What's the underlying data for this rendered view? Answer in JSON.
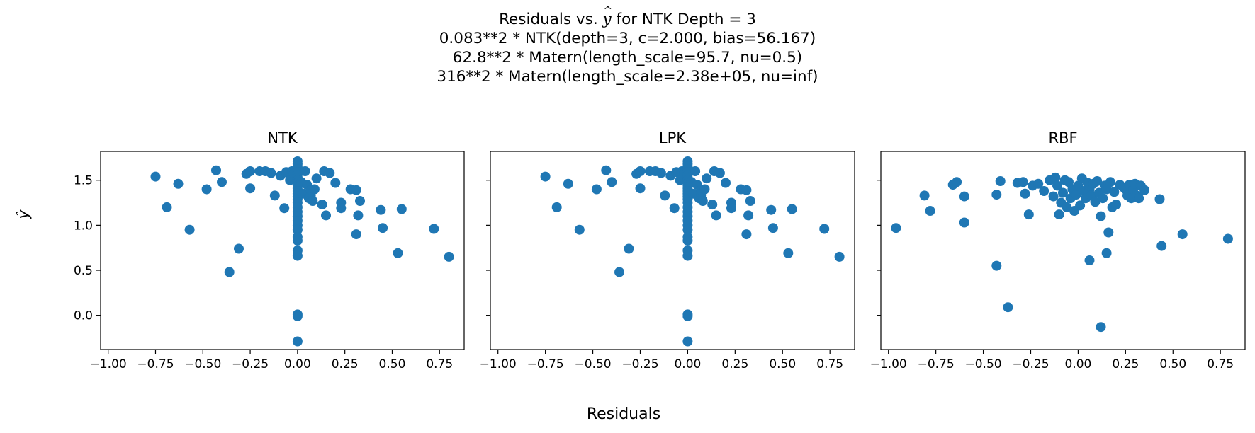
{
  "figure": {
    "title": {
      "line1_prefix": "Residuals vs. ",
      "line1_symbol": "y",
      "line1_suffix": " for NTK Depth = 3",
      "line2": "0.083**2 * NTK(depth=3, c=2.000, bias=56.167)",
      "line3": "62.8**2 * Matern(length_scale=95.7, nu=0.5)",
      "line4": "316**2 * Matern(length_scale=2.38e+05, nu=inf)"
    },
    "xlabel": "Residuals",
    "ylabel": "ŷ",
    "marker_color": "#1f77b4"
  },
  "chart_data": [
    {
      "type": "scatter",
      "title": "NTK",
      "xlim": [
        -1.04,
        0.88
      ],
      "ylim": [
        -0.38,
        1.82
      ],
      "xticks": [
        -1.0,
        -0.75,
        -0.5,
        -0.25,
        0.0,
        0.25,
        0.5,
        0.75
      ],
      "xtick_labels": [
        "−1.00",
        "−0.75",
        "−0.50",
        "−0.25",
        "0.00",
        "0.25",
        "0.50",
        "0.75"
      ],
      "yticks": [
        0.0,
        0.5,
        1.0,
        1.5
      ],
      "ytick_labels": [
        "0.0",
        "0.5",
        "1.0",
        "1.5"
      ],
      "points": [
        [
          -0.75,
          1.54
        ],
        [
          -0.69,
          1.2
        ],
        [
          -0.63,
          1.46
        ],
        [
          -0.57,
          0.95
        ],
        [
          -0.48,
          1.4
        ],
        [
          -0.43,
          1.61
        ],
        [
          -0.4,
          1.48
        ],
        [
          -0.36,
          0.48
        ],
        [
          -0.31,
          0.74
        ],
        [
          -0.27,
          1.57
        ],
        [
          -0.25,
          1.6
        ],
        [
          -0.25,
          1.41
        ],
        [
          -0.2,
          1.6
        ],
        [
          -0.17,
          1.6
        ],
        [
          -0.14,
          1.58
        ],
        [
          -0.12,
          1.33
        ],
        [
          -0.09,
          1.55
        ],
        [
          -0.07,
          1.19
        ],
        [
          -0.06,
          1.59
        ],
        [
          -0.04,
          1.5
        ],
        [
          -0.03,
          1.6
        ],
        [
          -0.02,
          1.57
        ],
        [
          0,
          1.71
        ],
        [
          0,
          1.68
        ],
        [
          0,
          1.65
        ],
        [
          0,
          1.62
        ],
        [
          0,
          1.59
        ],
        [
          0,
          1.56
        ],
        [
          0,
          1.53
        ],
        [
          0,
          1.5
        ],
        [
          0,
          1.47
        ],
        [
          0,
          1.44
        ],
        [
          0,
          1.41
        ],
        [
          0,
          1.38
        ],
        [
          0,
          1.35
        ],
        [
          0,
          1.32
        ],
        [
          0,
          1.29
        ],
        [
          0,
          1.25
        ],
        [
          0,
          1.2
        ],
        [
          0,
          1.15
        ],
        [
          0,
          1.1
        ],
        [
          0,
          1.05
        ],
        [
          0,
          1.0
        ],
        [
          0,
          0.95
        ],
        [
          0,
          0.87
        ],
        [
          0,
          0.83
        ],
        [
          0,
          0.72
        ],
        [
          0,
          0.66
        ],
        [
          0,
          0.01
        ],
        [
          0,
          -0.01
        ],
        [
          0,
          -0.29
        ],
        [
          0.02,
          1.48
        ],
        [
          0.03,
          1.35
        ],
        [
          0.04,
          1.6
        ],
        [
          0.05,
          1.45
        ],
        [
          0.06,
          1.3
        ],
        [
          0.07,
          1.33
        ],
        [
          0.07,
          1.39
        ],
        [
          0.08,
          1.27
        ],
        [
          0.09,
          1.4
        ],
        [
          0.1,
          1.52
        ],
        [
          0.13,
          1.23
        ],
        [
          0.14,
          1.6
        ],
        [
          0.15,
          1.11
        ],
        [
          0.17,
          1.58
        ],
        [
          0.2,
          1.47
        ],
        [
          0.23,
          1.25
        ],
        [
          0.23,
          1.19
        ],
        [
          0.28,
          1.4
        ],
        [
          0.31,
          1.39
        ],
        [
          0.31,
          0.9
        ],
        [
          0.32,
          1.11
        ],
        [
          0.33,
          1.27
        ],
        [
          0.44,
          1.17
        ],
        [
          0.45,
          0.97
        ],
        [
          0.53,
          0.69
        ],
        [
          0.55,
          1.18
        ],
        [
          0.72,
          0.96
        ],
        [
          0.8,
          0.65
        ]
      ]
    },
    {
      "type": "scatter",
      "title": "LPK",
      "xlim": [
        -1.04,
        0.88
      ],
      "ylim": [
        -0.38,
        1.82
      ],
      "xticks": [
        -1.0,
        -0.75,
        -0.5,
        -0.25,
        0.0,
        0.25,
        0.5,
        0.75
      ],
      "xtick_labels": [
        "−1.00",
        "−0.75",
        "−0.50",
        "−0.25",
        "0.00",
        "0.25",
        "0.50",
        "0.75"
      ],
      "yticks": [
        0.0,
        0.5,
        1.0,
        1.5
      ],
      "ytick_labels": [],
      "points": [
        [
          -0.75,
          1.54
        ],
        [
          -0.69,
          1.2
        ],
        [
          -0.63,
          1.46
        ],
        [
          -0.57,
          0.95
        ],
        [
          -0.48,
          1.4
        ],
        [
          -0.43,
          1.61
        ],
        [
          -0.4,
          1.48
        ],
        [
          -0.36,
          0.48
        ],
        [
          -0.31,
          0.74
        ],
        [
          -0.27,
          1.57
        ],
        [
          -0.25,
          1.6
        ],
        [
          -0.25,
          1.41
        ],
        [
          -0.2,
          1.6
        ],
        [
          -0.17,
          1.6
        ],
        [
          -0.14,
          1.58
        ],
        [
          -0.12,
          1.33
        ],
        [
          -0.09,
          1.55
        ],
        [
          -0.07,
          1.19
        ],
        [
          -0.06,
          1.59
        ],
        [
          -0.04,
          1.5
        ],
        [
          -0.03,
          1.6
        ],
        [
          -0.02,
          1.57
        ],
        [
          0,
          1.71
        ],
        [
          0,
          1.68
        ],
        [
          0,
          1.65
        ],
        [
          0,
          1.62
        ],
        [
          0,
          1.59
        ],
        [
          0,
          1.56
        ],
        [
          0,
          1.53
        ],
        [
          0,
          1.5
        ],
        [
          0,
          1.47
        ],
        [
          0,
          1.44
        ],
        [
          0,
          1.41
        ],
        [
          0,
          1.38
        ],
        [
          0,
          1.35
        ],
        [
          0,
          1.32
        ],
        [
          0,
          1.29
        ],
        [
          0,
          1.25
        ],
        [
          0,
          1.2
        ],
        [
          0,
          1.15
        ],
        [
          0,
          1.1
        ],
        [
          0,
          1.05
        ],
        [
          0,
          1.0
        ],
        [
          0,
          0.95
        ],
        [
          0,
          0.87
        ],
        [
          0,
          0.83
        ],
        [
          0,
          0.72
        ],
        [
          0,
          0.66
        ],
        [
          0,
          0.01
        ],
        [
          0,
          -0.01
        ],
        [
          0,
          -0.29
        ],
        [
          0.02,
          1.48
        ],
        [
          0.03,
          1.35
        ],
        [
          0.04,
          1.6
        ],
        [
          0.05,
          1.45
        ],
        [
          0.06,
          1.3
        ],
        [
          0.07,
          1.33
        ],
        [
          0.07,
          1.39
        ],
        [
          0.08,
          1.27
        ],
        [
          0.09,
          1.4
        ],
        [
          0.1,
          1.52
        ],
        [
          0.13,
          1.23
        ],
        [
          0.14,
          1.6
        ],
        [
          0.15,
          1.11
        ],
        [
          0.17,
          1.58
        ],
        [
          0.2,
          1.47
        ],
        [
          0.23,
          1.25
        ],
        [
          0.23,
          1.19
        ],
        [
          0.28,
          1.4
        ],
        [
          0.31,
          1.39
        ],
        [
          0.31,
          0.9
        ],
        [
          0.32,
          1.11
        ],
        [
          0.33,
          1.27
        ],
        [
          0.44,
          1.17
        ],
        [
          0.45,
          0.97
        ],
        [
          0.53,
          0.69
        ],
        [
          0.55,
          1.18
        ],
        [
          0.72,
          0.96
        ],
        [
          0.8,
          0.65
        ]
      ]
    },
    {
      "type": "scatter",
      "title": "RBF",
      "xlim": [
        -1.04,
        0.88
      ],
      "ylim": [
        -0.38,
        1.82
      ],
      "xticks": [
        -1.0,
        -0.75,
        -0.5,
        -0.25,
        0.0,
        0.25,
        0.5,
        0.75
      ],
      "xtick_labels": [
        "−1.00",
        "−0.75",
        "−0.50",
        "−0.25",
        "0.00",
        "0.25",
        "0.50",
        "0.75"
      ],
      "yticks": [
        0.0,
        0.5,
        1.0,
        1.5
      ],
      "ytick_labels": [],
      "points": [
        [
          -0.96,
          0.97
        ],
        [
          -0.81,
          1.33
        ],
        [
          -0.78,
          1.16
        ],
        [
          -0.66,
          1.45
        ],
        [
          -0.64,
          1.48
        ],
        [
          -0.6,
          1.32
        ],
        [
          -0.6,
          1.03
        ],
        [
          -0.43,
          0.55
        ],
        [
          -0.43,
          1.34
        ],
        [
          -0.41,
          1.49
        ],
        [
          -0.37,
          0.09
        ],
        [
          -0.32,
          1.47
        ],
        [
          -0.29,
          1.48
        ],
        [
          -0.28,
          1.35
        ],
        [
          -0.26,
          1.12
        ],
        [
          -0.24,
          1.44
        ],
        [
          -0.21,
          1.46
        ],
        [
          -0.18,
          1.38
        ],
        [
          -0.15,
          1.5
        ],
        [
          -0.13,
          1.32
        ],
        [
          -0.12,
          1.53
        ],
        [
          -0.11,
          1.44
        ],
        [
          -0.1,
          1.12
        ],
        [
          -0.09,
          1.25
        ],
        [
          -0.08,
          1.36
        ],
        [
          -0.07,
          1.5
        ],
        [
          -0.06,
          1.2
        ],
        [
          -0.05,
          1.48
        ],
        [
          -0.04,
          1.3
        ],
        [
          -0.03,
          1.4
        ],
        [
          -0.02,
          1.16
        ],
        [
          -0.01,
          1.34
        ],
        [
          0,
          1.44
        ],
        [
          0.01,
          1.22
        ],
        [
          0.02,
          1.52
        ],
        [
          0.03,
          1.38
        ],
        [
          0.04,
          1.3
        ],
        [
          0.05,
          1.47
        ],
        [
          0.06,
          1.4
        ],
        [
          0.06,
          0.61
        ],
        [
          0.07,
          1.33
        ],
        [
          0.08,
          1.46
        ],
        [
          0.09,
          1.26
        ],
        [
          0.1,
          1.49
        ],
        [
          0.11,
          1.36
        ],
        [
          0.12,
          1.1
        ],
        [
          0.12,
          -0.13
        ],
        [
          0.13,
          1.3
        ],
        [
          0.14,
          1.44
        ],
        [
          0.15,
          1.4
        ],
        [
          0.15,
          0.69
        ],
        [
          0.16,
          0.92
        ],
        [
          0.17,
          1.48
        ],
        [
          0.18,
          1.2
        ],
        [
          0.19,
          1.37
        ],
        [
          0.2,
          1.23
        ],
        [
          0.22,
          1.45
        ],
        [
          0.24,
          1.42
        ],
        [
          0.25,
          1.4
        ],
        [
          0.26,
          1.33
        ],
        [
          0.27,
          1.45
        ],
        [
          0.28,
          1.3
        ],
        [
          0.29,
          1.4
        ],
        [
          0.3,
          1.46
        ],
        [
          0.31,
          1.33
        ],
        [
          0.32,
          1.3
        ],
        [
          0.33,
          1.44
        ],
        [
          0.35,
          1.39
        ],
        [
          0.43,
          1.29
        ],
        [
          0.44,
          0.77
        ],
        [
          0.55,
          0.9
        ],
        [
          0.79,
          0.85
        ]
      ]
    }
  ]
}
